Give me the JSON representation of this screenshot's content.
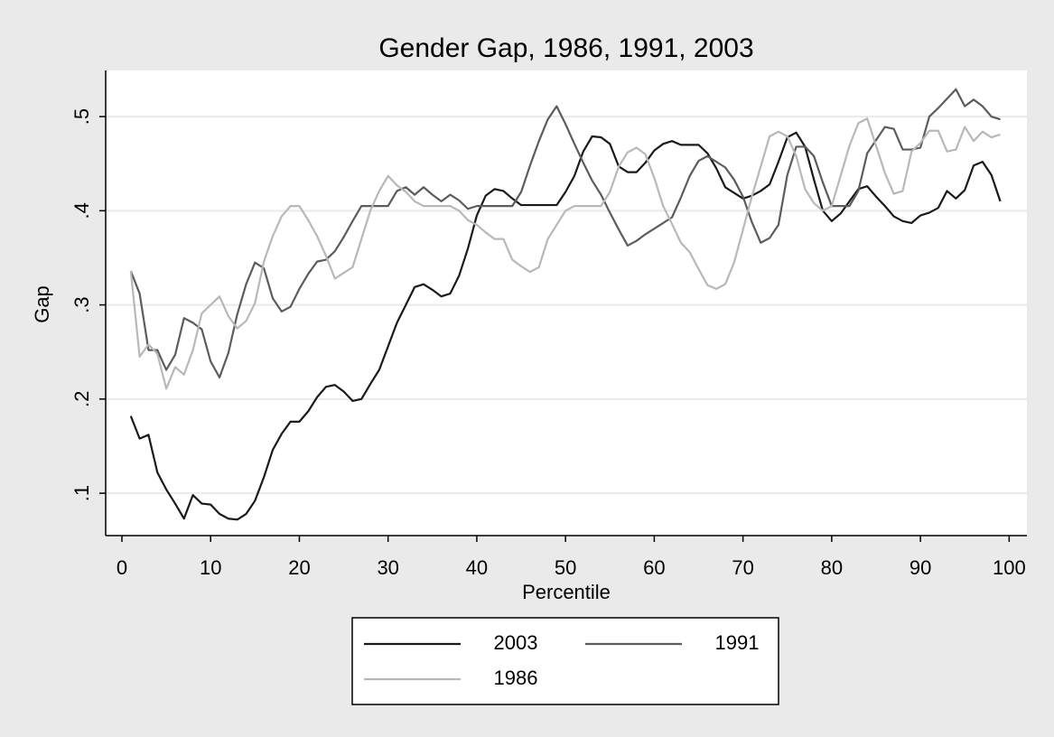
{
  "chart_data": {
    "type": "line",
    "title": "Gender Gap, 1986, 1991, 2003",
    "x_label": "Percentile",
    "y_label": "Gap",
    "x": [
      1,
      2,
      3,
      4,
      5,
      6,
      7,
      8,
      9,
      10,
      11,
      12,
      13,
      14,
      15,
      16,
      17,
      18,
      19,
      20,
      21,
      22,
      23,
      24,
      25,
      26,
      27,
      28,
      29,
      30,
      31,
      32,
      33,
      34,
      35,
      36,
      37,
      38,
      39,
      40,
      41,
      42,
      43,
      44,
      45,
      46,
      47,
      48,
      49,
      50,
      51,
      52,
      53,
      54,
      55,
      56,
      57,
      58,
      59,
      60,
      61,
      62,
      63,
      64,
      65,
      66,
      67,
      68,
      69,
      70,
      71,
      72,
      73,
      74,
      75,
      76,
      77,
      78,
      79,
      80,
      81,
      82,
      83,
      84,
      85,
      86,
      87,
      88,
      89,
      90,
      91,
      92,
      93,
      94,
      95,
      96,
      97,
      98,
      99
    ],
    "series": [
      {
        "name": "2003",
        "color": "#1a1a1a",
        "values": [
          0.182,
          0.158,
          0.162,
          0.122,
          0.104,
          0.089,
          0.073,
          0.098,
          0.089,
          0.088,
          0.078,
          0.073,
          0.072,
          0.078,
          0.092,
          0.117,
          0.146,
          0.163,
          0.176,
          0.176,
          0.187,
          0.202,
          0.213,
          0.215,
          0.208,
          0.198,
          0.2,
          0.216,
          0.231,
          0.256,
          0.281,
          0.3,
          0.319,
          0.322,
          0.316,
          0.309,
          0.312,
          0.331,
          0.36,
          0.395,
          0.416,
          0.423,
          0.421,
          0.413,
          0.406,
          0.406,
          0.406,
          0.406,
          0.406,
          0.42,
          0.437,
          0.463,
          0.479,
          0.478,
          0.471,
          0.447,
          0.441,
          0.441,
          0.451,
          0.464,
          0.471,
          0.474,
          0.47,
          0.47,
          0.47,
          0.461,
          0.445,
          0.425,
          0.419,
          0.413,
          0.416,
          0.421,
          0.428,
          0.452,
          0.478,
          0.483,
          0.468,
          0.433,
          0.4,
          0.389,
          0.397,
          0.41,
          0.423,
          0.426,
          0.415,
          0.405,
          0.394,
          0.389,
          0.387,
          0.395,
          0.398,
          0.403,
          0.421,
          0.413,
          0.422,
          0.448,
          0.452,
          0.438,
          0.41
        ]
      },
      {
        "name": "1991",
        "color": "#5c5c5c",
        "values": [
          0.336,
          0.312,
          0.252,
          0.252,
          0.231,
          0.247,
          0.286,
          0.281,
          0.274,
          0.24,
          0.223,
          0.249,
          0.29,
          0.322,
          0.345,
          0.339,
          0.307,
          0.293,
          0.298,
          0.317,
          0.333,
          0.346,
          0.348,
          0.357,
          0.372,
          0.389,
          0.405,
          0.405,
          0.405,
          0.405,
          0.421,
          0.425,
          0.417,
          0.425,
          0.417,
          0.41,
          0.417,
          0.411,
          0.402,
          0.405,
          0.405,
          0.405,
          0.405,
          0.405,
          0.42,
          0.448,
          0.474,
          0.497,
          0.511,
          0.492,
          0.471,
          0.451,
          0.432,
          0.417,
          0.398,
          0.38,
          0.363,
          0.368,
          0.375,
          0.381,
          0.387,
          0.393,
          0.414,
          0.437,
          0.453,
          0.458,
          0.452,
          0.446,
          0.433,
          0.415,
          0.388,
          0.366,
          0.371,
          0.385,
          0.438,
          0.468,
          0.468,
          0.458,
          0.43,
          0.405,
          0.405,
          0.405,
          0.421,
          0.461,
          0.475,
          0.489,
          0.487,
          0.465,
          0.465,
          0.467,
          0.5,
          0.509,
          0.519,
          0.529,
          0.511,
          0.518,
          0.511,
          0.5,
          0.497
        ]
      },
      {
        "name": "1986",
        "color": "#b8b8b8",
        "values": [
          0.336,
          0.245,
          0.258,
          0.248,
          0.211,
          0.234,
          0.226,
          0.252,
          0.291,
          0.3,
          0.309,
          0.288,
          0.275,
          0.283,
          0.302,
          0.346,
          0.373,
          0.394,
          0.405,
          0.405,
          0.39,
          0.373,
          0.352,
          0.328,
          0.334,
          0.34,
          0.37,
          0.4,
          0.421,
          0.437,
          0.427,
          0.42,
          0.41,
          0.405,
          0.405,
          0.405,
          0.405,
          0.4,
          0.39,
          0.385,
          0.377,
          0.37,
          0.37,
          0.348,
          0.341,
          0.335,
          0.34,
          0.37,
          0.385,
          0.4,
          0.405,
          0.405,
          0.405,
          0.405,
          0.42,
          0.447,
          0.462,
          0.467,
          0.46,
          0.435,
          0.405,
          0.386,
          0.366,
          0.356,
          0.338,
          0.321,
          0.317,
          0.322,
          0.345,
          0.38,
          0.415,
          0.447,
          0.479,
          0.484,
          0.479,
          0.458,
          0.423,
          0.408,
          0.4,
          0.405,
          0.437,
          0.469,
          0.493,
          0.498,
          0.469,
          0.44,
          0.418,
          0.421,
          0.463,
          0.472,
          0.485,
          0.485,
          0.463,
          0.465,
          0.489,
          0.474,
          0.484,
          0.478,
          0.481
        ]
      }
    ],
    "xlim": [
      -1.83,
      102.0
    ],
    "xticks": [
      0,
      10,
      20,
      30,
      40,
      50,
      60,
      70,
      80,
      90,
      100
    ],
    "ylim": [
      0.055,
      0.549
    ],
    "yticks": [
      {
        "value": 0.1,
        "label": ".1"
      },
      {
        "value": 0.2,
        "label": ".2"
      },
      {
        "value": 0.3,
        "label": ".3"
      },
      {
        "value": 0.4,
        "label": ".4"
      },
      {
        "value": 0.5,
        "label": ".5"
      }
    ],
    "grid": true,
    "legend": "bottom"
  }
}
